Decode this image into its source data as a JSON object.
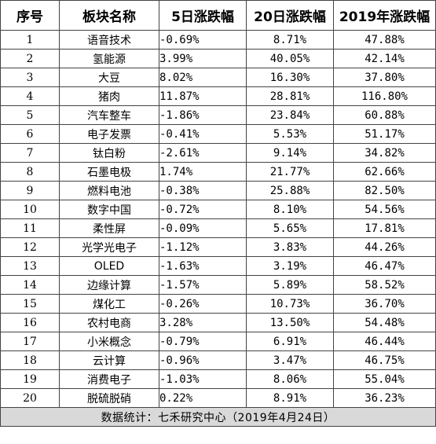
{
  "table": {
    "headers": [
      "序号",
      "板块名称",
      "5日涨跌幅",
      "20日涨跌幅",
      "2019年涨跌幅"
    ],
    "rows": [
      {
        "idx": "1",
        "name": "语音技术",
        "d5": "-0.69%",
        "d20": "8.71%",
        "y2019": "47.88%"
      },
      {
        "idx": "2",
        "name": "氢能源",
        "d5": "3.99%",
        "d20": "40.05%",
        "y2019": "42.14%"
      },
      {
        "idx": "3",
        "name": "大豆",
        "d5": "8.02%",
        "d20": "16.30%",
        "y2019": "37.80%"
      },
      {
        "idx": "4",
        "name": "猪肉",
        "d5": "11.87%",
        "d20": "28.81%",
        "y2019": "116.80%"
      },
      {
        "idx": "5",
        "name": "汽车整车",
        "d5": "-1.86%",
        "d20": "23.84%",
        "y2019": "60.88%"
      },
      {
        "idx": "6",
        "name": "电子发票",
        "d5": "-0.41%",
        "d20": "5.53%",
        "y2019": "51.17%"
      },
      {
        "idx": "7",
        "name": "钛白粉",
        "d5": "-2.61%",
        "d20": "9.14%",
        "y2019": "34.82%"
      },
      {
        "idx": "8",
        "name": "石墨电极",
        "d5": "1.74%",
        "d20": "21.77%",
        "y2019": "62.66%"
      },
      {
        "idx": "9",
        "name": "燃料电池",
        "d5": "-0.38%",
        "d20": "25.88%",
        "y2019": "82.50%"
      },
      {
        "idx": "10",
        "name": "数字中国",
        "d5": "-0.72%",
        "d20": "8.10%",
        "y2019": "54.56%"
      },
      {
        "idx": "11",
        "name": "柔性屏",
        "d5": "-0.09%",
        "d20": "5.65%",
        "y2019": "17.81%"
      },
      {
        "idx": "12",
        "name": "光学光电子",
        "d5": "-1.12%",
        "d20": "3.83%",
        "y2019": "44.26%"
      },
      {
        "idx": "13",
        "name": "OLED",
        "d5": "-1.63%",
        "d20": "3.19%",
        "y2019": "46.47%"
      },
      {
        "idx": "14",
        "name": "边缘计算",
        "d5": "-1.57%",
        "d20": "5.89%",
        "y2019": "58.52%"
      },
      {
        "idx": "15",
        "name": "煤化工",
        "d5": "-0.26%",
        "d20": "10.73%",
        "y2019": "36.70%"
      },
      {
        "idx": "16",
        "name": "农村电商",
        "d5": "3.28%",
        "d20": "13.50%",
        "y2019": "54.48%"
      },
      {
        "idx": "17",
        "name": "小米概念",
        "d5": "-0.79%",
        "d20": "6.91%",
        "y2019": "46.44%"
      },
      {
        "idx": "18",
        "name": "云计算",
        "d5": "-0.96%",
        "d20": "3.47%",
        "y2019": "46.75%"
      },
      {
        "idx": "19",
        "name": "消费电子",
        "d5": "-1.03%",
        "d20": "8.06%",
        "y2019": "55.04%"
      },
      {
        "idx": "20",
        "name": "脱硫脱硝",
        "d5": "0.22%",
        "d20": "8.91%",
        "y2019": "36.23%"
      }
    ],
    "footer": "数据统计：七禾研究中心（2019年4月24日）"
  }
}
